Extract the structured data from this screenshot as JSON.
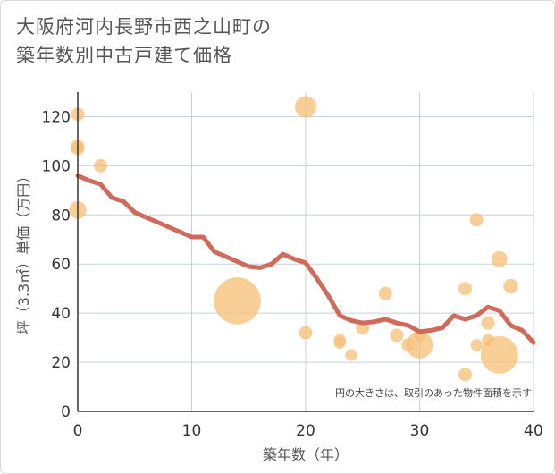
{
  "title_line1": "大阪府河内長野市西之山町の",
  "title_line2": "築年数別中古戸建て価格",
  "chart_data": {
    "type": "scatter",
    "title": "大阪府河内長野市西之山町の築年数別中古戸建て価格",
    "xlabel": "築年数（年）",
    "ylabel": "坪（3.3㎡）単価（万円）",
    "xlim": [
      0,
      40
    ],
    "ylim": [
      0,
      130
    ],
    "xticks": [
      0,
      10,
      20,
      30,
      40
    ],
    "yticks": [
      0,
      20,
      40,
      60,
      80,
      100,
      120
    ],
    "grid": true,
    "annotation": "円の大きさは、取引のあった物件面積を示す",
    "points": [
      {
        "x": 0,
        "y": 121,
        "size": 1.0
      },
      {
        "x": 0,
        "y": 108,
        "size": 1.0
      },
      {
        "x": 0,
        "y": 107,
        "size": 1.0
      },
      {
        "x": 0,
        "y": 82,
        "size": 1.3
      },
      {
        "x": 2,
        "y": 100,
        "size": 1.0
      },
      {
        "x": 14,
        "y": 45,
        "size": 3.5
      },
      {
        "x": 20,
        "y": 124,
        "size": 1.6
      },
      {
        "x": 20,
        "y": 32,
        "size": 1.0
      },
      {
        "x": 23,
        "y": 29,
        "size": 0.9
      },
      {
        "x": 23,
        "y": 28,
        "size": 0.9
      },
      {
        "x": 24,
        "y": 23,
        "size": 0.9
      },
      {
        "x": 25,
        "y": 34,
        "size": 1.0
      },
      {
        "x": 27,
        "y": 48,
        "size": 1.0
      },
      {
        "x": 28,
        "y": 31,
        "size": 1.0
      },
      {
        "x": 29,
        "y": 27,
        "size": 1.0
      },
      {
        "x": 30,
        "y": 27,
        "size": 2.0
      },
      {
        "x": 30,
        "y": 31,
        "size": 0.9
      },
      {
        "x": 34,
        "y": 50,
        "size": 1.0
      },
      {
        "x": 34,
        "y": 15,
        "size": 1.0
      },
      {
        "x": 35,
        "y": 78,
        "size": 1.0
      },
      {
        "x": 35,
        "y": 27,
        "size": 0.9
      },
      {
        "x": 36,
        "y": 36,
        "size": 1.0
      },
      {
        "x": 36,
        "y": 29,
        "size": 0.9
      },
      {
        "x": 37,
        "y": 62,
        "size": 1.2
      },
      {
        "x": 37,
        "y": 23,
        "size": 2.8
      },
      {
        "x": 38,
        "y": 51,
        "size": 1.1
      }
    ],
    "trend_line": {
      "x": [
        0,
        1,
        2,
        3,
        4,
        5,
        6,
        7,
        8,
        9,
        10,
        11,
        12,
        13,
        14,
        15,
        16,
        17,
        18,
        19,
        20,
        21,
        22,
        23,
        24,
        25,
        26,
        27,
        28,
        29,
        30,
        31,
        32,
        33,
        34,
        35,
        36,
        37,
        38,
        39,
        40
      ],
      "y": [
        96,
        94,
        92.5,
        87,
        85.5,
        81,
        79,
        77,
        75,
        73,
        71,
        71,
        65,
        63,
        61,
        59,
        58.5,
        60,
        64,
        62,
        60.5,
        54,
        47,
        39,
        37,
        36,
        36.5,
        37.5,
        36,
        35,
        32.5,
        33,
        34,
        39,
        37.5,
        39,
        42.5,
        41,
        35,
        33,
        28
      ]
    },
    "colors": {
      "bubble": "#f5c27a",
      "trend": "#d06a5a",
      "grid": "#c8d2dc",
      "axis": "#333333"
    }
  }
}
